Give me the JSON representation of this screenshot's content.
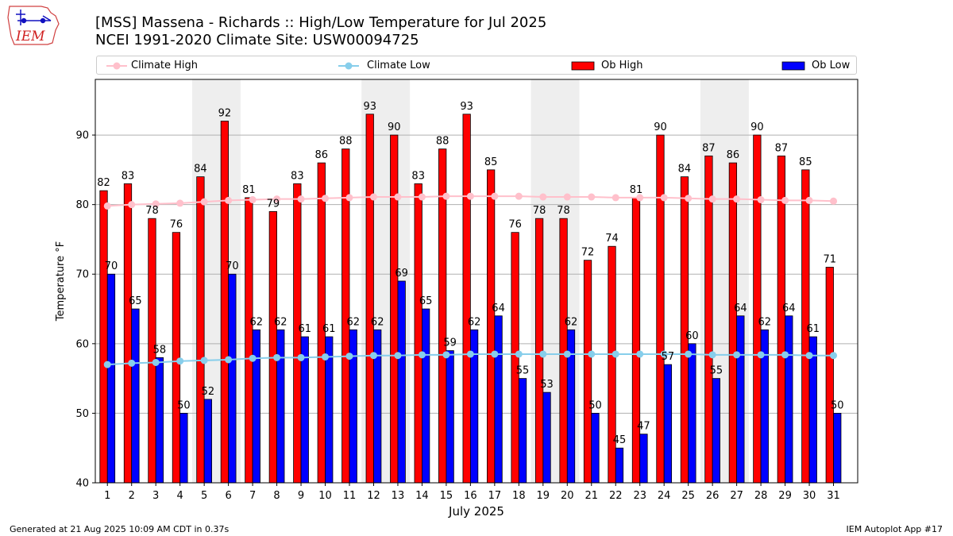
{
  "logo_text": "IEM",
  "title_line1": "[MSS] Massena - Richards :: High/Low Temperature for Jul 2025",
  "title_line2": "NCEI 1991-2020 Climate Site: USW00094725",
  "legend": {
    "climate_high": "Climate High",
    "climate_low": "Climate Low",
    "ob_high": "Ob High",
    "ob_low": "Ob Low"
  },
  "footer": {
    "left": "Generated at 21 Aug 2025 10:09 AM CDT in 0.37s",
    "right": "IEM Autoplot App #17"
  },
  "colors": {
    "ob_high": "#ff0000",
    "ob_low": "#0000ff",
    "climate_high": "#ffc0cb",
    "climate_low": "#87ceeb",
    "weekend_shade": "#eeeeee",
    "grid": "#b0b0b0"
  },
  "chart_data": {
    "type": "bar",
    "xlabel": "July 2025",
    "ylabel": "Temperature °F",
    "ylim": [
      40,
      98
    ],
    "yticks": [
      40,
      50,
      60,
      70,
      80,
      90
    ],
    "grid": "horizontal",
    "legend_position": "top",
    "categories": [
      "1",
      "2",
      "3",
      "4",
      "5",
      "6",
      "7",
      "8",
      "9",
      "10",
      "11",
      "12",
      "13",
      "14",
      "15",
      "16",
      "17",
      "18",
      "19",
      "20",
      "21",
      "22",
      "23",
      "24",
      "25",
      "26",
      "27",
      "28",
      "29",
      "30",
      "31"
    ],
    "shaded_days": [
      [
        5,
        6
      ],
      [
        12,
        13
      ],
      [
        19,
        20
      ],
      [
        26,
        27
      ]
    ],
    "series": [
      {
        "name": "Ob High",
        "kind": "bar",
        "values": [
          82,
          83,
          78,
          76,
          84,
          92,
          81,
          79,
          83,
          86,
          88,
          93,
          90,
          83,
          88,
          93,
          85,
          76,
          78,
          78,
          72,
          74,
          81,
          90,
          84,
          87,
          86,
          90,
          87,
          85,
          71
        ]
      },
      {
        "name": "Ob Low",
        "kind": "bar",
        "values": [
          70,
          65,
          58,
          50,
          52,
          70,
          62,
          62,
          61,
          61,
          62,
          62,
          69,
          65,
          59,
          62,
          64,
          55,
          53,
          62,
          50,
          45,
          47,
          57,
          60,
          55,
          64,
          62,
          64,
          61,
          50
        ]
      },
      {
        "name": "Climate High",
        "kind": "line",
        "values": [
          79.8,
          80.0,
          80.1,
          80.2,
          80.4,
          80.6,
          80.7,
          80.8,
          80.8,
          80.9,
          81.0,
          81.1,
          81.1,
          81.1,
          81.2,
          81.2,
          81.2,
          81.2,
          81.1,
          81.1,
          81.1,
          81.0,
          81.0,
          81.0,
          80.9,
          80.8,
          80.8,
          80.7,
          80.6,
          80.6,
          80.5
        ]
      },
      {
        "name": "Climate Low",
        "kind": "line",
        "values": [
          57.0,
          57.2,
          57.3,
          57.5,
          57.6,
          57.7,
          57.9,
          58.0,
          58.0,
          58.1,
          58.2,
          58.3,
          58.3,
          58.4,
          58.4,
          58.5,
          58.5,
          58.5,
          58.5,
          58.5,
          58.5,
          58.5,
          58.5,
          58.5,
          58.5,
          58.4,
          58.4,
          58.4,
          58.4,
          58.3,
          58.3
        ]
      }
    ]
  }
}
